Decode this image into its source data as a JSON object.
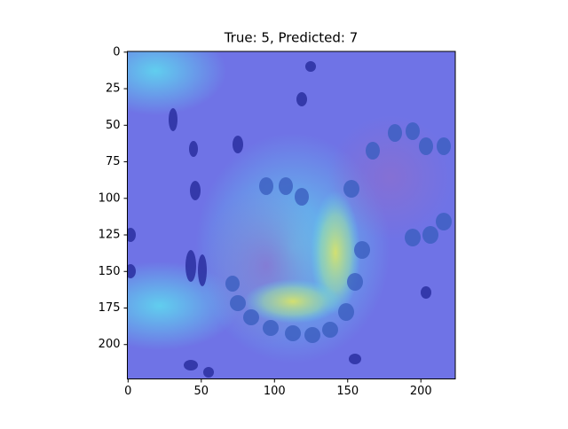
{
  "chart_data": {
    "type": "image",
    "title": "True: 5, Predicted: 7",
    "xlim": [
      -0.5,
      223.5
    ],
    "ylim": [
      223.5,
      -0.5
    ],
    "xticks": [
      0,
      50,
      100,
      150,
      200
    ],
    "yticks": [
      0,
      25,
      50,
      75,
      100,
      125,
      150,
      175,
      200
    ]
  }
}
